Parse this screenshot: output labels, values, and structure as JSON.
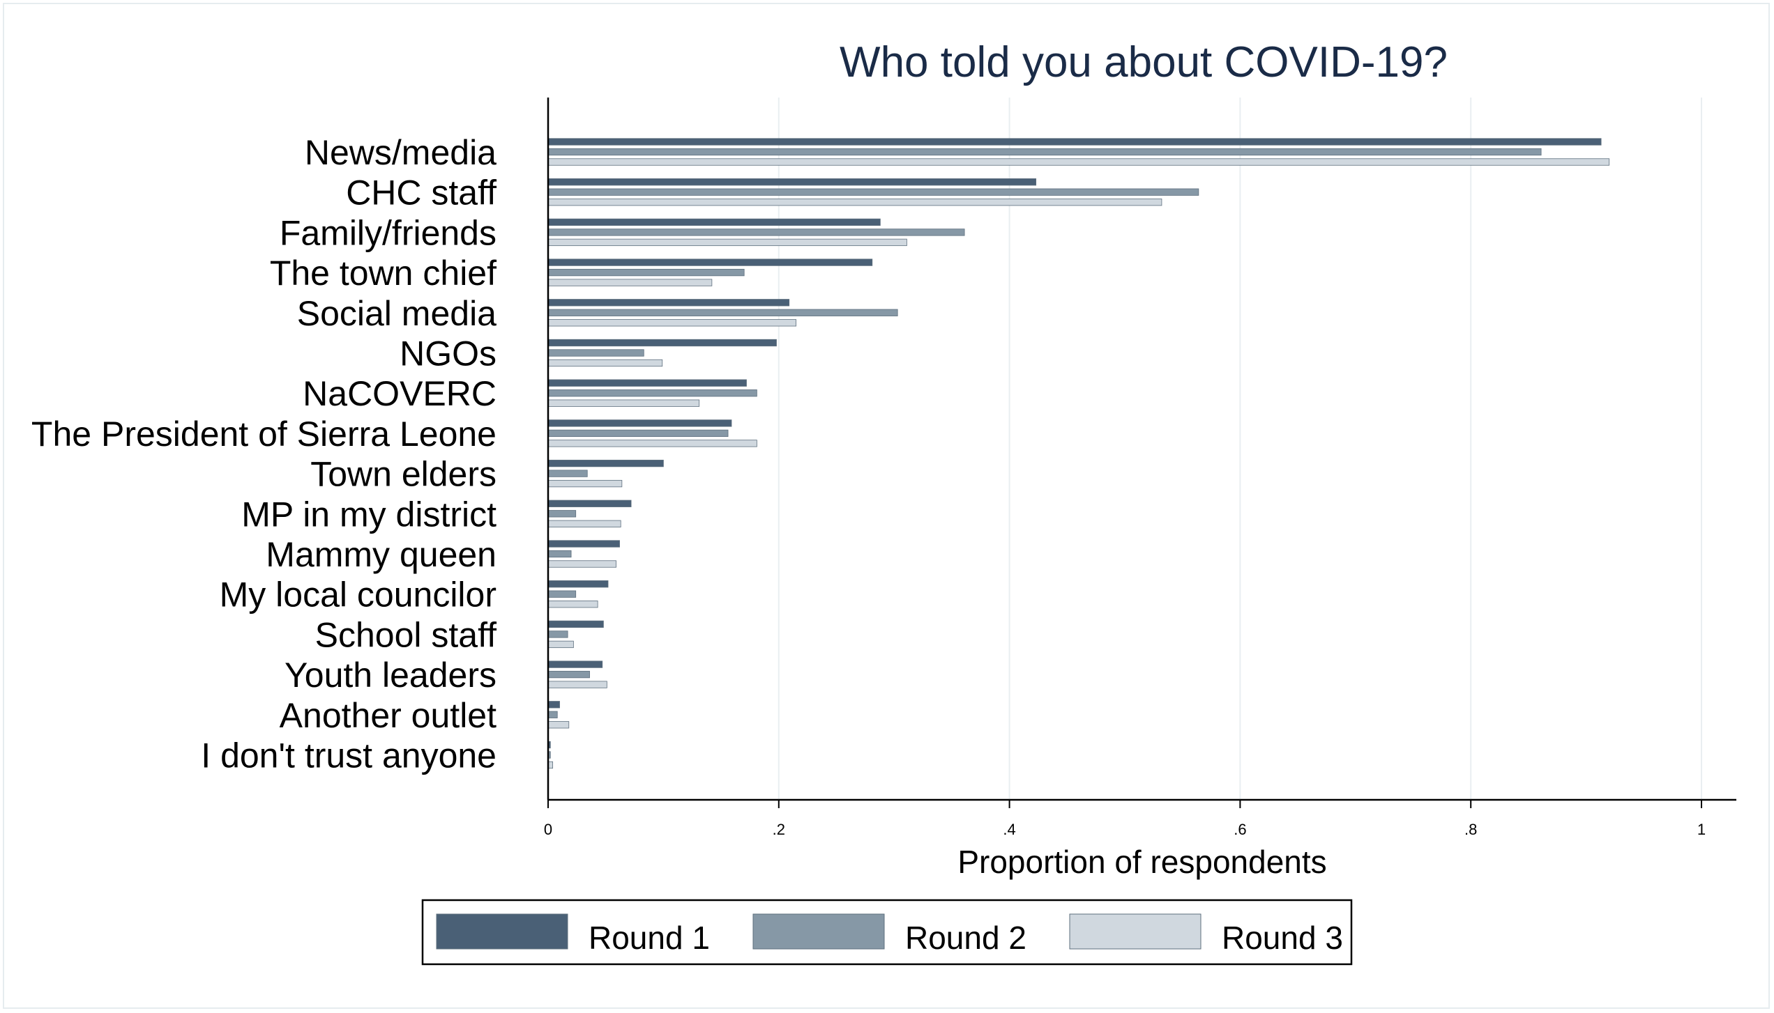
{
  "chart_data": {
    "type": "bar",
    "orientation": "horizontal",
    "title": "Who told you about COVID-19?",
    "xlabel": "Proportion of respondents",
    "ylabel": "",
    "xlim": [
      0,
      1.03
    ],
    "x_ticks": [
      0,
      0.2,
      0.4,
      0.6,
      0.8,
      1
    ],
    "x_tick_labels": [
      "0",
      ".2",
      ".4",
      ".6",
      ".8",
      "1"
    ],
    "grid": "vertical",
    "legend_position": "bottom",
    "categories": [
      "News/media",
      "CHC staff",
      "Family/friends",
      "The town chief",
      "Social media",
      "NGOs",
      "NaCOVERC",
      "The President of Sierra Leone",
      "Town elders",
      "MP in my district",
      "Mammy queen",
      "My local councilor",
      "School staff",
      "Youth leaders",
      "Another outlet",
      "I don't trust anyone"
    ],
    "series": [
      {
        "name": "Round 1",
        "color": "#4a6076",
        "values": [
          0.913,
          0.423,
          0.288,
          0.281,
          0.209,
          0.198,
          0.172,
          0.159,
          0.1,
          0.072,
          0.062,
          0.052,
          0.048,
          0.047,
          0.01,
          0.002
        ]
      },
      {
        "name": "Round 2",
        "color": "#8698a6",
        "values": [
          0.861,
          0.564,
          0.361,
          0.17,
          0.303,
          0.083,
          0.181,
          0.156,
          0.034,
          0.024,
          0.02,
          0.024,
          0.017,
          0.036,
          0.008,
          0.002
        ]
      },
      {
        "name": "Round 3",
        "color": "#d0d8df",
        "values": [
          0.92,
          0.532,
          0.311,
          0.142,
          0.215,
          0.099,
          0.131,
          0.181,
          0.064,
          0.063,
          0.059,
          0.043,
          0.022,
          0.051,
          0.018,
          0.004
        ]
      }
    ]
  }
}
